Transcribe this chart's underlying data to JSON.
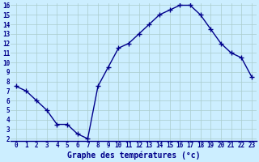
{
  "x": [
    0,
    1,
    2,
    3,
    4,
    5,
    6,
    7,
    8,
    9,
    10,
    11,
    12,
    13,
    14,
    15,
    16,
    17,
    18,
    19,
    20,
    21,
    22,
    23
  ],
  "y": [
    7.5,
    7.0,
    6.0,
    5.0,
    3.5,
    3.5,
    2.5,
    2.0,
    7.5,
    9.5,
    11.5,
    12.0,
    13.0,
    14.0,
    15.0,
    15.5,
    16.0,
    16.0,
    15.0,
    13.5,
    12.0,
    11.0,
    10.5,
    8.5
  ],
  "line_color": "#00008b",
  "marker": "+",
  "marker_size": 4,
  "bg_color": "#cceeff",
  "grid_color": "#aacccc",
  "xlabel": "Graphe des températures (°c)",
  "xlabel_color": "#00008b",
  "ylim_min": 2,
  "ylim_max": 16,
  "xlim_min": -0.5,
  "xlim_max": 23.5,
  "yticks": [
    2,
    3,
    4,
    5,
    6,
    7,
    8,
    9,
    10,
    11,
    12,
    13,
    14,
    15,
    16
  ],
  "xticks": [
    0,
    1,
    2,
    3,
    4,
    5,
    6,
    7,
    8,
    9,
    10,
    11,
    12,
    13,
    14,
    15,
    16,
    17,
    18,
    19,
    20,
    21,
    22,
    23
  ],
  "tick_fontsize": 5.5,
  "xlabel_fontsize": 7,
  "linewidth": 1.0
}
